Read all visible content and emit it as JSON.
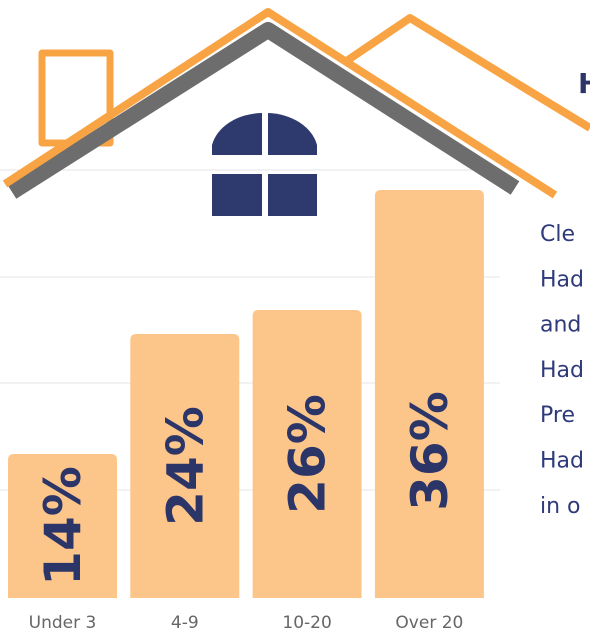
{
  "chart_data": {
    "type": "bar",
    "categories": [
      "Under 3",
      "4-9",
      "10-20",
      "Over 20"
    ],
    "values": [
      14,
      24,
      26,
      36
    ],
    "value_labels": [
      "14%",
      "24%",
      "26%",
      "36%"
    ],
    "color": "#fcc68a",
    "ylim": [
      2,
      36
    ]
  },
  "side_text": {
    "title": "H",
    "lines": [
      "Cle",
      "Had",
      "and",
      "Had",
      "Pre",
      "Had",
      "in o"
    ]
  }
}
